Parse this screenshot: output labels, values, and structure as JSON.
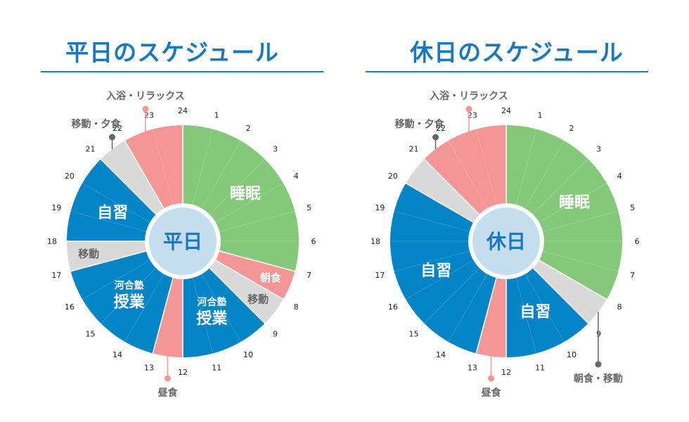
{
  "colors": {
    "sleep": "#84c879",
    "meal": "#f59696",
    "study": "#0284c7",
    "move": "#d9d9d9",
    "center_fill": "#c4def0",
    "center_text": "#1a78c2",
    "hour_text": "#222222",
    "label_gray": "#666666",
    "callout_gray": "#666666",
    "callout_pink": "#f59696"
  },
  "chart_data": [
    {
      "type": "pie",
      "title": "平日のスケジュール",
      "center_label": "平日",
      "hour_labels": [
        "24",
        "1",
        "2",
        "3",
        "4",
        "5",
        "6",
        "7",
        "8",
        "9",
        "10",
        "11",
        "12",
        "13",
        "14",
        "15",
        "16",
        "17",
        "18",
        "19",
        "20",
        "21",
        "22",
        "23"
      ],
      "segments": [
        {
          "start": 0,
          "end": 7,
          "category": "sleep",
          "label_lines": [
            "睡眠"
          ]
        },
        {
          "start": 7,
          "end": 8,
          "category": "meal",
          "label_lines": [
            "朝食"
          ]
        },
        {
          "start": 8,
          "end": 9,
          "category": "move",
          "label_lines": [
            "移動"
          ]
        },
        {
          "start": 9,
          "end": 12,
          "category": "study",
          "label_lines": [
            "河合塾",
            "授業"
          ]
        },
        {
          "start": 12,
          "end": 13,
          "category": "meal",
          "label_lines": []
        },
        {
          "start": 13,
          "end": 17,
          "category": "study",
          "label_lines": [
            "河合塾",
            "授業"
          ]
        },
        {
          "start": 17,
          "end": 18,
          "category": "move",
          "label_lines": [
            "移動"
          ]
        },
        {
          "start": 18,
          "end": 21,
          "category": "study",
          "label_lines": [
            "自習"
          ]
        },
        {
          "start": 21,
          "end": 22,
          "category": "move",
          "label_lines": []
        },
        {
          "start": 22,
          "end": 24,
          "category": "meal",
          "label_lines": []
        }
      ],
      "callouts": [
        {
          "text": "入浴・リラックス",
          "hour": 22.75,
          "color": "pink",
          "side": "top"
        },
        {
          "text": "移動・夕食",
          "hour": 21.5,
          "color": "gray",
          "side": "top"
        },
        {
          "text": "昼食",
          "hour": 12.5,
          "color": "pink",
          "side": "bottom"
        }
      ]
    },
    {
      "type": "pie",
      "title": "休日のスケジュール",
      "center_label": "休日",
      "hour_labels": [
        "24",
        "1",
        "2",
        "3",
        "4",
        "5",
        "6",
        "7",
        "8",
        "9",
        "10",
        "11",
        "12",
        "13",
        "14",
        "15",
        "16",
        "17",
        "18",
        "19",
        "20",
        "21",
        "22",
        "23"
      ],
      "segments": [
        {
          "start": 0,
          "end": 8,
          "category": "sleep",
          "label_lines": [
            "睡眠"
          ]
        },
        {
          "start": 8,
          "end": 9,
          "category": "move",
          "label_lines": []
        },
        {
          "start": 9,
          "end": 12,
          "category": "study",
          "label_lines": [
            "自習"
          ]
        },
        {
          "start": 12,
          "end": 13,
          "category": "meal",
          "label_lines": []
        },
        {
          "start": 13,
          "end": 20,
          "category": "study",
          "label_lines": [
            "自習"
          ]
        },
        {
          "start": 20,
          "end": 21,
          "category": "move",
          "label_lines": []
        },
        {
          "start": 21,
          "end": 24,
          "category": "meal",
          "label_lines": []
        }
      ],
      "callouts": [
        {
          "text": "入浴・リラックス",
          "hour": 22.75,
          "color": "pink",
          "side": "top"
        },
        {
          "text": "移動・夕食",
          "hour": 21.5,
          "color": "gray",
          "side": "top"
        },
        {
          "text": "昼食",
          "hour": 12.5,
          "color": "pink",
          "side": "bottom"
        },
        {
          "text": "朝食・移動",
          "hour": 8.5,
          "color": "gray",
          "side": "bottom"
        }
      ]
    }
  ]
}
